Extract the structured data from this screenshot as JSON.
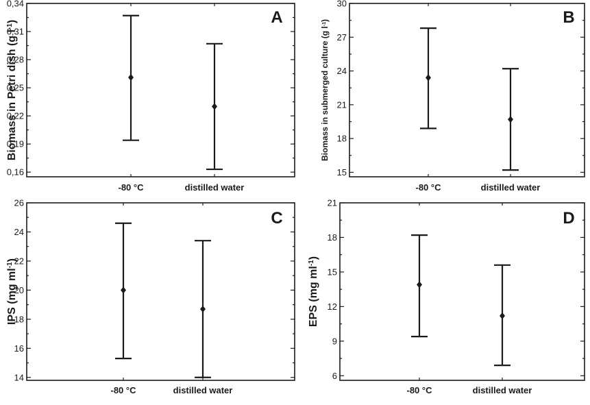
{
  "chart_data": [
    {
      "type": "scatter",
      "panel": "A",
      "ylabel": "Biomass in Petri dish (g l",
      "ylabel_sup": "-1",
      "ylabel_tail": ")",
      "categories": [
        "-80 °C",
        "distilled water"
      ],
      "ylim": [
        0.155,
        0.34
      ],
      "yticks": [
        0.16,
        0.19,
        0.22,
        0.25,
        0.28,
        0.31,
        0.34
      ],
      "ytick_labels": [
        "0,16",
        "0,19",
        "0,22",
        "0,25",
        "0,28",
        "0,31",
        "0,34"
      ],
      "points": [
        {
          "category": "-80 °C",
          "mean": 0.261,
          "low": 0.194,
          "high": 0.327
        },
        {
          "category": "distilled water",
          "mean": 0.23,
          "low": 0.163,
          "high": 0.297
        }
      ]
    },
    {
      "type": "scatter",
      "panel": "B",
      "ylabel": "Biomass in submerged culture (g l",
      "ylabel_sup": "-1",
      "ylabel_tail": ")",
      "categories": [
        "-80 °C",
        "distilled water"
      ],
      "ylim": [
        14.6,
        30
      ],
      "yticks": [
        15,
        18,
        21,
        24,
        27,
        30
      ],
      "ytick_labels": [
        "15",
        "18",
        "21",
        "24",
        "27",
        "30"
      ],
      "points": [
        {
          "category": "-80 °C",
          "mean": 23.4,
          "low": 18.9,
          "high": 27.8
        },
        {
          "category": "distilled water",
          "mean": 19.7,
          "low": 15.2,
          "high": 24.2
        }
      ]
    },
    {
      "type": "scatter",
      "panel": "C",
      "ylabel": "IPS (mg ml",
      "ylabel_sup": "-1",
      "ylabel_tail": ")",
      "categories": [
        "-80 °C",
        "distilled water"
      ],
      "ylim": [
        13.8,
        26
      ],
      "yticks": [
        14,
        16,
        18,
        20,
        22,
        24,
        26
      ],
      "ytick_labels": [
        "14",
        "16",
        "18",
        "20",
        "22",
        "24",
        "26"
      ],
      "points": [
        {
          "category": "-80 °C",
          "mean": 20.0,
          "low": 15.3,
          "high": 24.6
        },
        {
          "category": "distilled water",
          "mean": 18.7,
          "low": 14.0,
          "high": 23.4
        }
      ]
    },
    {
      "type": "scatter",
      "panel": "D",
      "ylabel": "EPS (mg ml",
      "ylabel_sup": "-1",
      "ylabel_tail": ")",
      "categories": [
        "-80 °C",
        "distilled water"
      ],
      "ylim": [
        5.6,
        21
      ],
      "yticks": [
        6,
        9,
        12,
        15,
        18,
        21
      ],
      "ytick_labels": [
        "6",
        "9",
        "12",
        "15",
        "18",
        "21"
      ],
      "points": [
        {
          "category": "-80 °C",
          "mean": 13.9,
          "low": 9.4,
          "high": 18.2
        },
        {
          "category": "distilled water",
          "mean": 11.2,
          "low": 6.9,
          "high": 15.6
        }
      ]
    }
  ],
  "colors": {
    "ink": "#1a1a1a",
    "background": "#ffffff"
  }
}
